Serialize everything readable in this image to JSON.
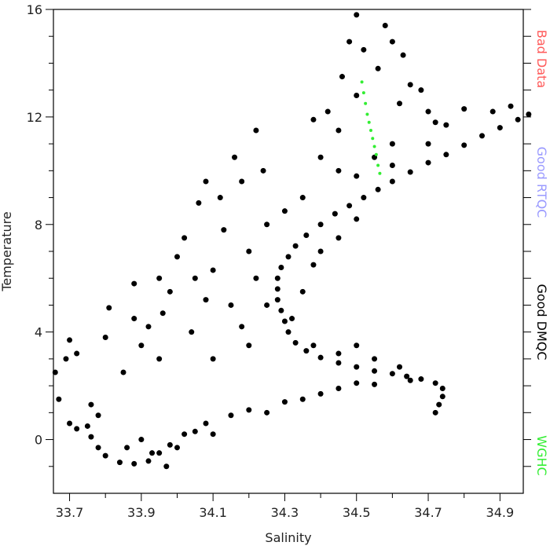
{
  "chart_data": {
    "type": "scatter",
    "x_label": "Salinity",
    "y_label": "Temperature",
    "xlim": [
      33.655,
      34.965
    ],
    "ylim": [
      -2,
      16
    ],
    "xticks": [
      33.7,
      33.9,
      34.1,
      34.3,
      34.5,
      34.7,
      34.9
    ],
    "yticks": [
      0,
      4,
      8,
      12,
      16
    ],
    "xminorticks": [
      33.8,
      34.0,
      34.2,
      34.4,
      34.6,
      34.8
    ],
    "yminorticks": [
      -1,
      1,
      2,
      3,
      5,
      6,
      7,
      9,
      10,
      11,
      13,
      14,
      15
    ],
    "series": [
      {
        "name": "Bad Data",
        "color": "#ff5a5a",
        "x": [],
        "values": []
      },
      {
        "name": "Good RTQC",
        "color": "#9a9aff",
        "x": [],
        "values": []
      },
      {
        "name": "Good DMQC",
        "color": "#000000",
        "x": [
          34.72,
          34.73,
          34.74,
          34.74,
          34.72,
          34.68,
          34.64,
          34.6,
          34.55,
          34.5,
          34.45,
          34.4,
          34.36,
          34.33,
          34.31,
          34.3,
          34.29,
          34.28,
          34.28,
          34.28,
          34.29,
          34.31,
          34.33,
          34.36,
          34.4,
          34.44,
          34.48,
          34.52,
          34.56,
          34.6,
          34.65,
          34.7,
          34.75,
          34.8,
          34.85,
          34.9,
          34.95,
          34.98,
          34.25,
          34.22,
          34.35,
          34.38,
          34.32,
          34.2,
          34.25,
          34.3,
          34.4,
          34.45,
          34.5,
          34.38,
          34.45,
          34.55,
          34.5,
          34.62,
          34.35,
          34.5,
          34.55,
          34.6,
          34.6,
          34.7,
          34.75,
          34.8,
          34.88,
          34.93,
          34.65,
          34.55,
          34.45,
          34.4,
          34.3,
          34.2,
          34.15,
          34.08,
          34.02,
          33.98,
          33.95,
          33.92,
          33.88,
          33.84,
          33.8,
          33.78,
          33.76,
          33.75,
          33.78,
          33.76,
          33.7,
          33.72,
          33.86,
          33.9,
          33.93,
          33.97,
          34.0,
          34.05,
          34.1,
          34.25,
          34.35,
          34.5,
          33.66,
          33.67,
          33.69,
          33.7,
          33.72,
          33.8,
          33.81,
          33.85,
          33.88,
          33.9,
          33.92,
          33.95,
          33.96,
          33.98,
          34.0,
          34.02,
          34.05,
          34.04,
          34.08,
          34.1,
          34.12,
          34.13,
          34.15,
          34.16,
          34.18,
          34.2,
          34.22,
          34.24,
          34.18,
          34.1,
          33.95,
          33.88,
          34.06,
          34.08,
          34.5,
          34.48,
          34.52,
          34.58,
          34.6,
          34.63,
          34.56,
          34.65,
          34.68,
          34.46,
          34.42,
          34.38,
          34.45,
          34.62,
          34.7,
          34.72,
          34.5,
          34.4,
          34.45
        ],
        "values": [
          1.0,
          1.3,
          1.6,
          1.9,
          2.1,
          2.25,
          2.35,
          2.45,
          2.55,
          2.7,
          2.85,
          3.05,
          3.3,
          3.6,
          4.0,
          4.4,
          4.8,
          5.2,
          5.6,
          6.0,
          6.4,
          6.8,
          7.2,
          7.6,
          8.0,
          8.4,
          8.7,
          9.0,
          9.3,
          9.6,
          9.95,
          10.3,
          10.6,
          10.95,
          11.3,
          11.6,
          11.9,
          12.1,
          5.0,
          6.0,
          5.5,
          6.5,
          4.5,
          7.0,
          8.0,
          8.5,
          7.0,
          7.5,
          8.2,
          3.5,
          3.2,
          3.0,
          3.5,
          2.7,
          9.0,
          9.8,
          10.5,
          11.0,
          10.2,
          11.0,
          11.7,
          12.3,
          12.2,
          12.4,
          2.2,
          2.05,
          1.9,
          1.7,
          1.4,
          1.1,
          0.9,
          0.6,
          0.2,
          -0.2,
          -0.5,
          -0.8,
          -0.9,
          -0.85,
          -0.6,
          -0.3,
          0.1,
          0.5,
          0.9,
          1.3,
          0.6,
          0.4,
          -0.3,
          0.0,
          -0.5,
          -1.0,
          -0.3,
          0.3,
          0.2,
          1.0,
          1.5,
          2.1,
          2.5,
          1.5,
          3.0,
          3.7,
          3.2,
          3.8,
          4.9,
          2.5,
          4.5,
          3.5,
          4.2,
          3.0,
          4.7,
          5.5,
          6.8,
          7.5,
          6.0,
          4.0,
          5.2,
          6.3,
          9.0,
          7.8,
          5.0,
          10.5,
          9.6,
          3.5,
          11.5,
          10.0,
          4.2,
          3.0,
          6.0,
          5.8,
          8.8,
          9.6,
          15.8,
          14.8,
          14.5,
          15.4,
          14.8,
          14.3,
          13.8,
          13.2,
          13.0,
          13.5,
          12.2,
          11.9,
          11.5,
          12.5,
          12.2,
          11.8,
          12.8,
          10.5,
          10.0
        ]
      },
      {
        "name": "WGHC",
        "color": "#33ee33",
        "x": [
          34.515,
          34.52,
          34.525,
          34.53,
          34.535,
          34.54,
          34.545,
          34.55,
          34.555,
          34.56,
          34.565
        ],
        "values": [
          13.3,
          12.9,
          12.5,
          12.1,
          11.8,
          11.5,
          11.2,
          10.9,
          10.6,
          10.2,
          9.9
        ]
      }
    ]
  }
}
